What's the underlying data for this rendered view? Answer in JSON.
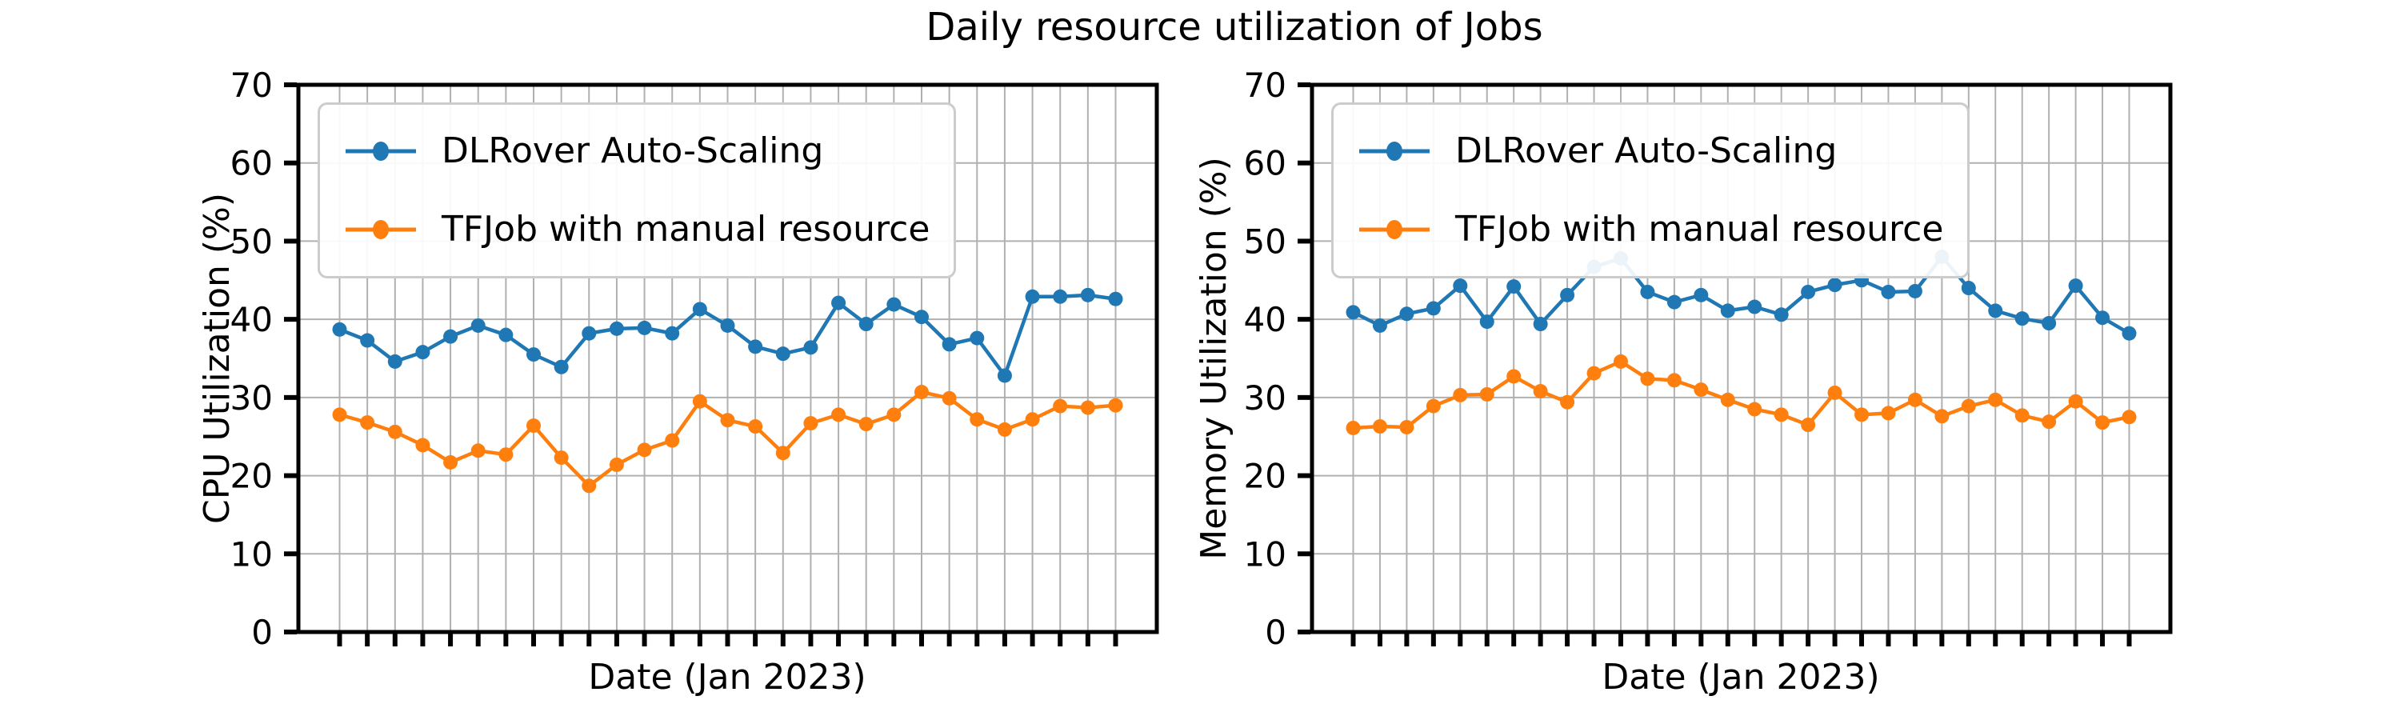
{
  "title": "Daily resource utilization of Jobs",
  "style": {
    "background": "#ffffff",
    "grid_color": "#b0b0b0",
    "spine_color": "#000000",
    "text_color": "#000000",
    "legend_border_color": "#cccccc",
    "series1_color": "#1f77b4",
    "series2_color": "#ff7f0e"
  },
  "legend": {
    "items": [
      "DLRover Auto-Scaling",
      "TFJob with manual resource"
    ],
    "position": "upper left"
  },
  "chart_data": [
    {
      "type": "line",
      "panel": "left",
      "xlabel": "Date (Jan 2023)",
      "ylabel": "CPU Utilization (%)",
      "ylim": [
        0,
        70
      ],
      "yticks": [
        0,
        10,
        20,
        30,
        40,
        50,
        60,
        70
      ],
      "x_tick_labels_visible": false,
      "grid": true,
      "legend_position": "upper left",
      "x": [
        1,
        2,
        3,
        4,
        5,
        6,
        7,
        8,
        9,
        10,
        11,
        12,
        13,
        14,
        15,
        16,
        17,
        18,
        19,
        20,
        21,
        22,
        23,
        24,
        25,
        26,
        27,
        28,
        29
      ],
      "series": [
        {
          "name": "DLRover Auto-Scaling",
          "color": "#1f77b4",
          "marker": "circle",
          "values": [
            38.7,
            37.3,
            34.6,
            35.8,
            37.8,
            39.2,
            38.0,
            35.5,
            33.9,
            38.2,
            38.8,
            38.9,
            38.2,
            41.3,
            39.2,
            36.5,
            35.6,
            36.4,
            42.1,
            39.4,
            41.9,
            40.3,
            36.8,
            37.6,
            32.8,
            42.9,
            42.9,
            43.1,
            42.6
          ]
        },
        {
          "name": "TFJob with manual resource",
          "color": "#ff7f0e",
          "marker": "circle",
          "values": [
            27.8,
            26.8,
            25.6,
            23.9,
            21.7,
            23.2,
            22.7,
            26.4,
            22.3,
            18.7,
            21.4,
            23.3,
            24.5,
            29.5,
            27.1,
            26.3,
            22.9,
            26.7,
            27.8,
            26.6,
            27.8,
            30.7,
            29.9,
            27.2,
            25.9,
            27.2,
            28.9,
            28.7,
            29.0
          ]
        }
      ]
    },
    {
      "type": "line",
      "panel": "right",
      "xlabel": "Date (Jan 2023)",
      "ylabel": "Memory Utilization (%)",
      "ylim": [
        0,
        70
      ],
      "yticks": [
        0,
        10,
        20,
        30,
        40,
        50,
        60,
        70
      ],
      "x_tick_labels_visible": false,
      "grid": true,
      "legend_position": "upper left",
      "x": [
        1,
        2,
        3,
        4,
        5,
        6,
        7,
        8,
        9,
        10,
        11,
        12,
        13,
        14,
        15,
        16,
        17,
        18,
        19,
        20,
        21,
        22,
        23,
        24,
        25,
        26,
        27,
        28,
        29,
        30
      ],
      "series": [
        {
          "name": "DLRover Auto-Scaling",
          "color": "#1f77b4",
          "marker": "circle",
          "values": [
            40.9,
            39.2,
            40.7,
            41.4,
            44.3,
            39.7,
            44.2,
            39.4,
            43.1,
            46.7,
            47.8,
            43.5,
            42.2,
            43.1,
            41.1,
            41.6,
            40.6,
            43.5,
            44.4,
            45.0,
            43.5,
            43.6,
            48.0,
            44.0,
            41.1,
            40.1,
            39.5,
            44.3,
            40.2,
            38.2
          ]
        },
        {
          "name": "TFJob with manual resource",
          "color": "#ff7f0e",
          "marker": "circle",
          "values": [
            26.1,
            26.3,
            26.2,
            28.9,
            30.3,
            30.4,
            32.7,
            30.8,
            29.4,
            33.1,
            34.6,
            32.4,
            32.2,
            31.0,
            29.7,
            28.5,
            27.8,
            26.5,
            30.6,
            27.8,
            28.0,
            29.7,
            27.6,
            28.9,
            29.7,
            27.7,
            26.9,
            29.5,
            26.8,
            27.5
          ]
        }
      ]
    }
  ]
}
